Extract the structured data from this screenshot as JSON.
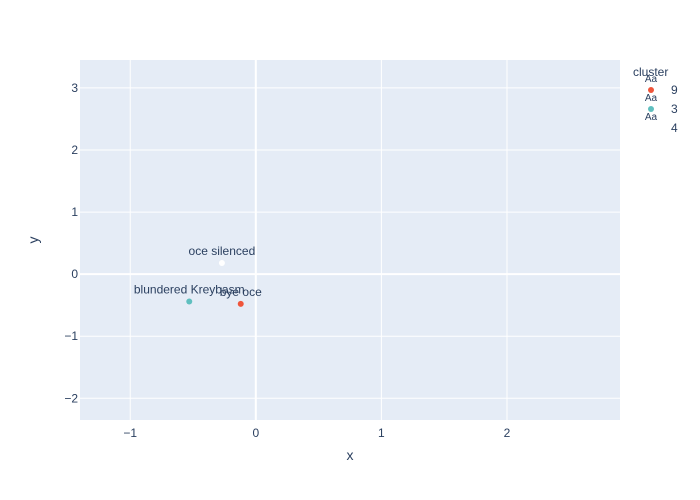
{
  "chart_data": {
    "type": "scatter",
    "xlabel": "x",
    "ylabel": "y",
    "xlim": [
      -1.4,
      2.9
    ],
    "ylim": [
      -2.35,
      3.45
    ],
    "x_ticks": [
      -1,
      0,
      1,
      2
    ],
    "y_ticks": [
      -2,
      -1,
      0,
      1,
      2,
      3
    ],
    "x_tick_labels": [
      "−1",
      "0",
      "1",
      "2"
    ],
    "y_tick_labels": [
      "−2",
      "−1",
      "0",
      "1",
      "2",
      "3"
    ],
    "grid": true,
    "legend": {
      "title": "cluster",
      "placement": "right",
      "marker_text": "Aa",
      "entries": [
        {
          "name": "9",
          "color": "#ef553b"
        },
        {
          "name": "3",
          "color": "#5fbfbf"
        },
        {
          "name": "4",
          "color": "#ffffff"
        }
      ]
    },
    "series": [
      {
        "name": "9",
        "color": "#ef553b",
        "points": [
          {
            "x": -0.12,
            "y": -0.48,
            "label": "bye oce"
          }
        ]
      },
      {
        "name": "3",
        "color": "#5fbfbf",
        "points": [
          {
            "x": -0.53,
            "y": -0.44,
            "label": "blundered Kreybasm"
          }
        ]
      },
      {
        "name": "4",
        "color": "#ffffff",
        "points": [
          {
            "x": -0.27,
            "y": 0.18,
            "label": "oce silenced"
          }
        ]
      }
    ]
  },
  "colors": {
    "plot_bg": "#e5ecf6",
    "grid": "#ffffff",
    "text": "#2a3f5f"
  }
}
